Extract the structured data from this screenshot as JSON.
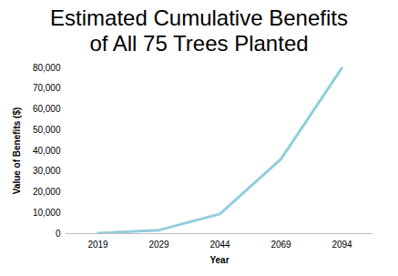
{
  "chart_data": {
    "type": "line",
    "title": "Estimated Cumulative Benefits of All 75 Trees Planted",
    "x_label": "Year",
    "y_label": "Value of Benefits ($)",
    "categories": [
      "2019",
      "2029",
      "2044",
      "2069",
      "2094"
    ],
    "values": [
      200,
      1700,
      9500,
      36000,
      80000
    ],
    "color": "#92cddc",
    "ylim": [
      0,
      80000
    ],
    "yticks": [
      0,
      {
        "value": 10000,
        "label": "10,000"
      },
      {
        "value": 20000,
        "label": "20,000"
      },
      {
        "value": 30000,
        "label": "30,000"
      },
      {
        "value": 40000,
        "label": "40,000"
      },
      {
        "value": 50000,
        "label": "50,000"
      },
      {
        "value": 60000,
        "label": "60,000"
      },
      {
        "value": 70000,
        "label": "70,000"
      },
      {
        "value": 80000,
        "label": "80,000"
      }
    ],
    "grid": false
  }
}
